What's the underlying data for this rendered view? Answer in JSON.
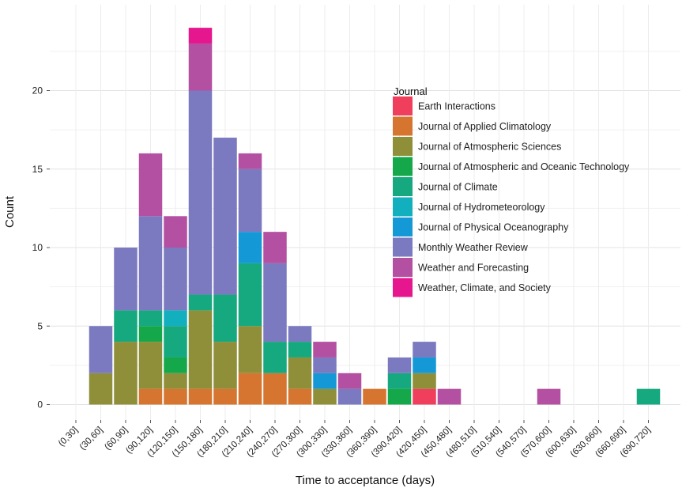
{
  "chart_data": {
    "type": "bar",
    "stacked": true,
    "xlabel": "Time to acceptance (days)",
    "ylabel": "Count",
    "ylim": [
      0,
      24.5
    ],
    "yticks": [
      0,
      5,
      10,
      15,
      20
    ],
    "grid": true,
    "legend_position": "right-inside",
    "legend_title": "Journal",
    "categories": [
      "(0,30]",
      "(30,60]",
      "(60,90]",
      "(90,120]",
      "(120,150]",
      "(150,180]",
      "(180,210]",
      "(210,240]",
      "(240,270]",
      "(270,300]",
      "(300,330]",
      "(330,360]",
      "(360,390]",
      "(390,420]",
      "(420,450]",
      "(450,480]",
      "(480,510]",
      "(510,540]",
      "(540,570]",
      "(570,600]",
      "(600,630]",
      "(630,660]",
      "(660,690]",
      "(690,720]"
    ],
    "series": [
      {
        "name": "Earth Interactions",
        "color": "#ef3f5c",
        "values": [
          0,
          0,
          0,
          0,
          0,
          0,
          0,
          0,
          0,
          0,
          0,
          0,
          0,
          0,
          1,
          0,
          0,
          0,
          0,
          0,
          0,
          0,
          0,
          0
        ]
      },
      {
        "name": "Journal of Applied Climatology",
        "color": "#d6752f",
        "values": [
          0,
          0,
          0,
          1,
          1,
          1,
          1,
          2,
          2,
          1,
          0,
          0,
          1,
          0,
          0,
          0,
          0,
          0,
          0,
          0,
          0,
          0,
          0,
          0
        ]
      },
      {
        "name": "Journal of Atmospheric Sciences",
        "color": "#8f8f3a",
        "values": [
          0,
          2,
          4,
          3,
          1,
          5,
          3,
          3,
          0,
          2,
          1,
          0,
          0,
          0,
          1,
          0,
          0,
          0,
          0,
          0,
          0,
          0,
          0,
          0
        ]
      },
      {
        "name": "Journal of Atmospheric and Oceanic Technology",
        "color": "#15a84a",
        "values": [
          0,
          0,
          0,
          1,
          1,
          0,
          0,
          0,
          0,
          0,
          0,
          0,
          0,
          1,
          0,
          0,
          0,
          0,
          0,
          0,
          0,
          0,
          0,
          0
        ]
      },
      {
        "name": "Journal of Climate",
        "color": "#16a87e",
        "values": [
          0,
          0,
          2,
          1,
          2,
          1,
          3,
          4,
          2,
          1,
          0,
          0,
          0,
          1,
          0,
          0,
          0,
          0,
          0,
          0,
          0,
          0,
          0,
          1
        ]
      },
      {
        "name": "Journal of Hydrometeorology",
        "color": "#12b0be",
        "values": [
          0,
          0,
          0,
          0,
          1,
          0,
          0,
          0,
          0,
          0,
          0,
          0,
          0,
          0,
          0,
          0,
          0,
          0,
          0,
          0,
          0,
          0,
          0,
          0
        ]
      },
      {
        "name": "Journal of Physical Oceanography",
        "color": "#1598d6",
        "values": [
          0,
          0,
          0,
          0,
          0,
          0,
          0,
          2,
          0,
          0,
          1,
          0,
          0,
          0,
          1,
          0,
          0,
          0,
          0,
          0,
          0,
          0,
          0,
          0
        ]
      },
      {
        "name": "Monthly Weather Review",
        "color": "#7b7ac0",
        "values": [
          0,
          3,
          4,
          6,
          4,
          13,
          10,
          4,
          5,
          1,
          1,
          1,
          0,
          1,
          1,
          0,
          0,
          0,
          0,
          0,
          0,
          0,
          0,
          0
        ]
      },
      {
        "name": "Weather and Forecasting",
        "color": "#b450a1",
        "values": [
          0,
          0,
          0,
          4,
          2,
          3,
          0,
          1,
          2,
          0,
          1,
          1,
          0,
          0,
          0,
          1,
          0,
          0,
          0,
          1,
          0,
          0,
          0,
          0
        ]
      },
      {
        "name": "Weather, Climate, and Society",
        "color": "#e6168f",
        "values": [
          0,
          0,
          0,
          0,
          0,
          1,
          0,
          0,
          0,
          0,
          0,
          0,
          0,
          0,
          0,
          0,
          0,
          0,
          0,
          0,
          0,
          0,
          0,
          0
        ]
      }
    ]
  }
}
